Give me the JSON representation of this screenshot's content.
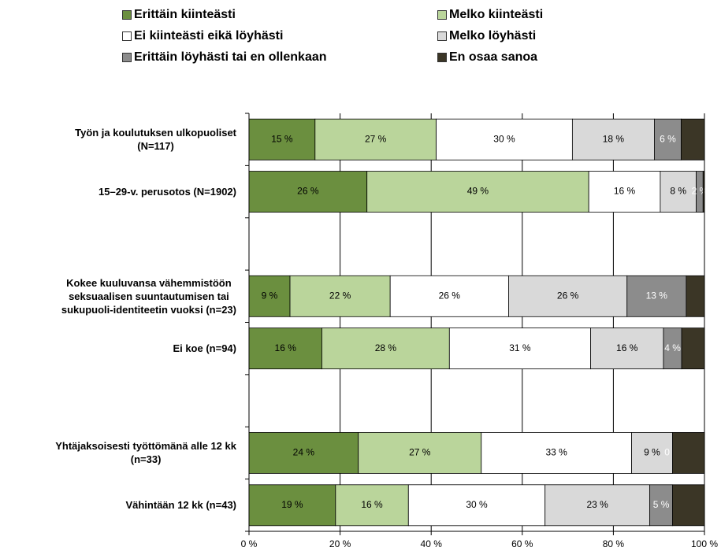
{
  "chart_data": {
    "type": "stacked-barh",
    "categories": [
      "Työn ja koulutuksen ulkopuoliset\n(N=117)",
      "15–29-v. perusotos (N=1902)",
      null,
      "Kokee kuuluvansa vähemmistöön\nseksuaalisen suuntautumisen tai\nsukupuoli-identiteetin vuoksi (n=23)",
      "Ei koe (n=94)",
      null,
      "Yhtäjaksoisesti työttömänä alle 12 kk\n(n=33)",
      "Vähintään 12 kk (n=43)"
    ],
    "series": [
      {
        "name": "Erittäin kiinteästi",
        "color": "#6b8f3f",
        "values": [
          14.5,
          25.9,
          null,
          9,
          16,
          null,
          24,
          19
        ],
        "value_labels": [
          "15 %",
          "26 %",
          null,
          "9 %",
          "16 %",
          null,
          "24 %",
          "19 %"
        ]
      },
      {
        "name": "Melko kiinteästi",
        "color": "#bad59b",
        "values": [
          26.6,
          48.7,
          null,
          22,
          28,
          null,
          27,
          16
        ],
        "value_labels": [
          "27 %",
          "49 %",
          null,
          "22 %",
          "28 %",
          null,
          "27 %",
          "16 %"
        ]
      },
      {
        "name": "Ei kiinteästi eikä löyhästi",
        "color": "#ffffff",
        "values": [
          29.9,
          15.7,
          null,
          26,
          31,
          null,
          33,
          30
        ],
        "value_labels": [
          "30 %",
          "16 %",
          null,
          "26 %",
          "31 %",
          null,
          "33 %",
          "30 %"
        ]
      },
      {
        "name": "Melko löyhästi",
        "color": "#d9d9d9",
        "values": [
          18,
          7.9,
          null,
          26,
          16,
          null,
          9,
          23
        ],
        "value_labels": [
          "18 %",
          "8 %",
          null,
          "26 %",
          "16 %",
          null,
          "9 %",
          "23 %"
        ]
      },
      {
        "name": "Erittäin löyhästi tai en ollenkaan",
        "color": "#8c8c8c",
        "values": [
          5.9,
          1.5,
          null,
          13,
          4,
          null,
          0,
          5
        ],
        "value_labels": [
          "6 %",
          "2 %",
          null,
          "13 %",
          "4 %",
          null,
          "0 %",
          "5 %"
        ]
      },
      {
        "name": "En osaa sanoa",
        "color": "#3b3626",
        "values": [
          5.1,
          0.3,
          null,
          4,
          5,
          null,
          7,
          7
        ]
      }
    ],
    "xlim": [
      0,
      100
    ],
    "xticks": [
      {
        "value": 0,
        "label": "0 %"
      },
      {
        "value": 20,
        "label": "20 %"
      },
      {
        "value": 40,
        "label": "40 %"
      },
      {
        "value": 60,
        "label": "60 %"
      },
      {
        "value": 80,
        "label": "80 %"
      },
      {
        "value": 100,
        "label": "100 %"
      }
    ],
    "grid": true
  }
}
